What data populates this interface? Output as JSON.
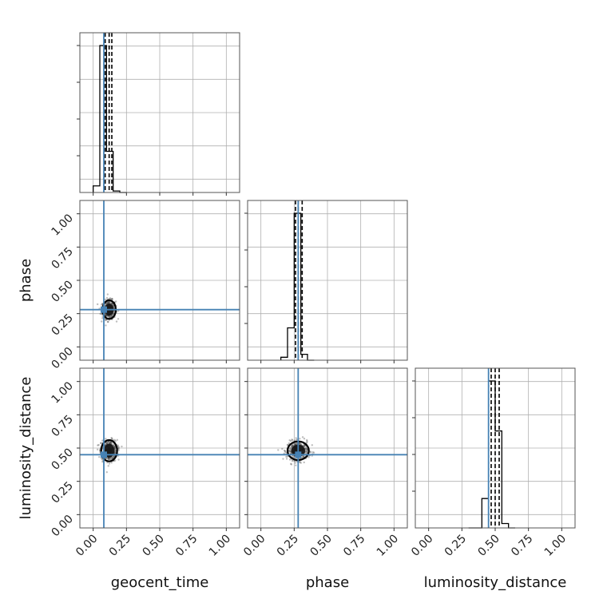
{
  "chart_data": {
    "type": "corner",
    "parameters": [
      "geocent_time",
      "phase",
      "luminosity_distance"
    ],
    "axis_range": [
      -0.1,
      1.1
    ],
    "tick_labels": [
      "0.00",
      "0.25",
      "0.50",
      "0.75",
      "1.00"
    ],
    "tick_values": [
      0,
      0.25,
      0.5,
      0.75,
      1.0
    ],
    "grid": true,
    "colors": {
      "truth": "#4682b4",
      "hist": "#000000",
      "points": "#444444",
      "grid": "#b0b0b0"
    },
    "truths": {
      "geocent_time": 0.08,
      "phase": 0.28,
      "luminosity_distance": 0.45
    },
    "histograms": {
      "geocent_time": {
        "edges": [
          0.0,
          0.05,
          0.1,
          0.15,
          0.2,
          0.25
        ],
        "counts": [
          0.045,
          1.0,
          0.28,
          0.01,
          0.0
        ],
        "quantiles": [
          0.09,
          0.12,
          0.14
        ]
      },
      "phase": {
        "edges": [
          0.15,
          0.2,
          0.25,
          0.3,
          0.35,
          0.4
        ],
        "counts": [
          0.02,
          0.22,
          1.0,
          0.04,
          0.0
        ],
        "quantiles": [
          0.26,
          0.28,
          0.31
        ]
      },
      "luminosity_distance": {
        "edges": [
          0.3,
          0.35,
          0.4,
          0.45,
          0.5,
          0.55,
          0.6,
          0.65
        ],
        "counts": [
          0.0,
          0.0,
          0.2,
          1.0,
          0.66,
          0.03,
          0.0
        ],
        "quantiles": [
          0.47,
          0.5,
          0.53
        ]
      }
    },
    "scatter_2d": [
      {
        "x": "geocent_time",
        "y": "phase",
        "center": [
          0.12,
          0.28
        ],
        "spread": [
          0.025,
          0.035
        ]
      },
      {
        "x": "geocent_time",
        "y": "luminosity_distance",
        "center": [
          0.12,
          0.48
        ],
        "spread": [
          0.03,
          0.04
        ]
      },
      {
        "x": "phase",
        "y": "luminosity_distance",
        "center": [
          0.28,
          0.48
        ],
        "spread": [
          0.04,
          0.035
        ]
      }
    ]
  }
}
